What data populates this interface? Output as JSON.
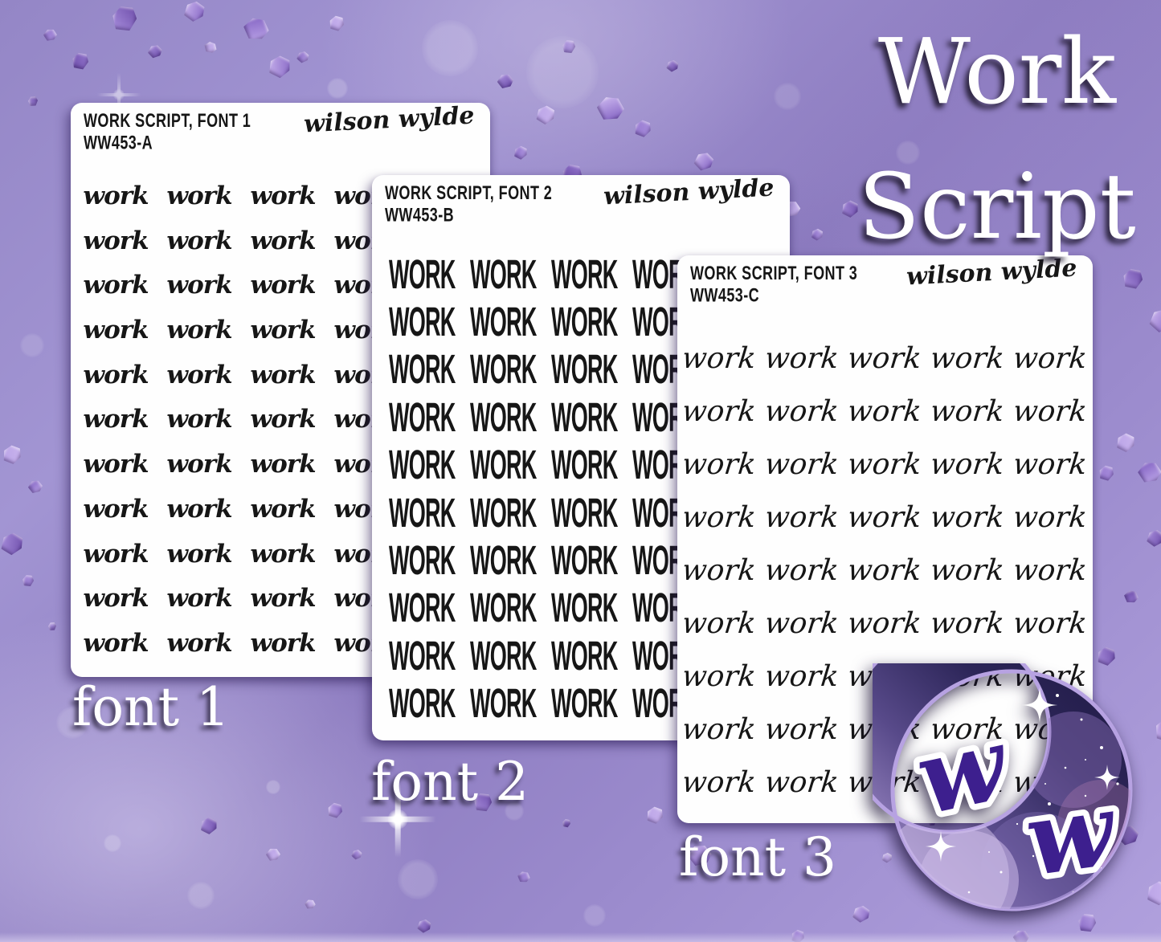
{
  "title": {
    "line1": "Work",
    "line2": "Script"
  },
  "captions": [
    "font 1",
    "font 2",
    "font 3"
  ],
  "brand": {
    "logo_text": "wilson wylde",
    "monogram_letters": [
      "w",
      "w"
    ]
  },
  "sheets": [
    {
      "header": "WORK SCRIPT, FONT 1",
      "sku": "WW453-A",
      "word": "work",
      "grid": {
        "rows": 11,
        "cols": 4
      }
    },
    {
      "header": "WORK SCRIPT, FONT 2",
      "sku": "WW453-B",
      "word": "WORK",
      "grid": {
        "rows": 10,
        "cols": 4
      }
    },
    {
      "header": "WORK SCRIPT, FONT 3",
      "sku": "WW453-C",
      "word": "work",
      "grid": {
        "rows": 9,
        "cols": 5
      }
    }
  ],
  "colors": {
    "background_purple": "#9c8ccb",
    "sheet_white": "#fefefe",
    "ink_black": "#161616",
    "title_white": "#ffffff",
    "monogram_purple": "#3d1f8e",
    "moon_outline_lavender": "#b7a2e2",
    "moon_galaxy_dark": "#241e4e"
  }
}
